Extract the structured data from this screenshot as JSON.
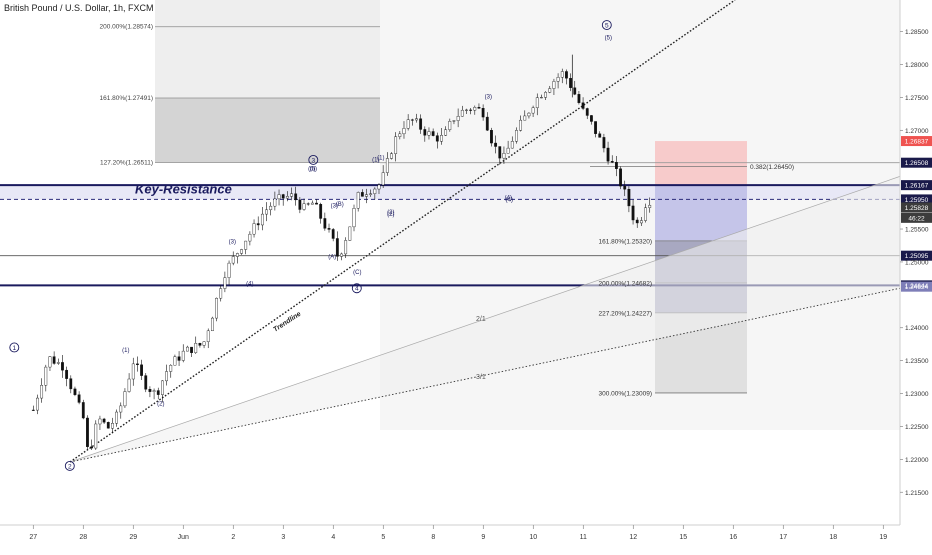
{
  "chart_data": {
    "type": "candlestick",
    "title": "British Pound / U.S. Dollar, 1h, FXCM",
    "x_tick_labels": [
      "27",
      "28",
      "29",
      "Jun",
      "2",
      "3",
      "4",
      "5",
      "8",
      "9",
      "10",
      "11",
      "12",
      "15",
      "16",
      "17",
      "18",
      "19"
    ],
    "ylim": [
      1.212,
      1.2895
    ],
    "y_ticks": [
      "1.28500",
      "1.28000",
      "1.27500",
      "1.27000",
      "1.25500",
      "1.25000",
      "1.24000",
      "1.23500",
      "1.23000",
      "1.22500",
      "1.22000",
      "1.21500"
    ],
    "price_badges": [
      {
        "value": 1.26837,
        "text": "1.26837",
        "color": "#ef5350"
      },
      {
        "value": 1.26508,
        "text": "1.26508",
        "color": "#1a1a4a"
      },
      {
        "value": 1.26167,
        "text": "1.26167",
        "color": "#1a1a4a"
      },
      {
        "value": 1.2595,
        "text": "1.25950",
        "color": "#1a1a4a"
      },
      {
        "value": 1.25828,
        "text": "1.25828",
        "color": "#3c3c3c"
      },
      {
        "value": 1.2567,
        "text": "46:22",
        "color": "#3c3c3c"
      },
      {
        "value": 1.25095,
        "text": "1.25095",
        "color": "#1a1a4a"
      },
      {
        "value": 1.24644,
        "text": "1.24644",
        "color": "#1a1a4a"
      },
      {
        "value": 1.24624,
        "text": "1.24624",
        "color": "#7e7eb8"
      }
    ],
    "key_resistance_label": "Key-Resistance",
    "key_resistance_zone": [
      1.2595,
      1.26167
    ],
    "support_line": 1.24644,
    "resistance_line_2": 1.25095,
    "fib_upper": [
      {
        "level": "200.00%",
        "value": 1.28574,
        "text": "200.00%(1.28574)"
      },
      {
        "level": "161.80%",
        "value": 1.27491,
        "text": "161.80%(1.27491)"
      },
      {
        "level": "127.20%",
        "value": 1.26511,
        "text": "127.20%(1.26511)"
      }
    ],
    "fib_lower": [
      {
        "value": 1.2645,
        "text": "0.382(1.26450)"
      },
      {
        "value": 1.2532,
        "text": "161.80%(1.25320)"
      },
      {
        "value": 1.24682,
        "text": "200.00%(1.24682)"
      },
      {
        "value": 1.24227,
        "text": "227.20%(1.24227)"
      },
      {
        "value": 1.23009,
        "text": "300.00%(1.23009)"
      }
    ],
    "trendline_label": "Trendline",
    "gann_labels": [
      "2/1",
      "3/1"
    ],
    "wave_labels": [
      {
        "text": "1",
        "circled": true
      },
      {
        "text": "2",
        "circled": true
      },
      {
        "text": "3",
        "circled": true
      },
      {
        "text": "4",
        "circled": true
      },
      {
        "text": "5",
        "circled": true
      },
      {
        "text": "(1)"
      },
      {
        "text": "(2)"
      },
      {
        "text": "(3)"
      },
      {
        "text": "(4)"
      },
      {
        "text": "(5)"
      },
      {
        "text": "(1)"
      },
      {
        "text": "(2)"
      },
      {
        "text": "(3)"
      },
      {
        "text": "(4)"
      },
      {
        "text": "(5)"
      },
      {
        "text": "(A)"
      },
      {
        "text": "(B)"
      },
      {
        "text": "(C)"
      },
      {
        "text": "(1)"
      },
      {
        "text": "(2)"
      },
      {
        "text": "(3)"
      },
      {
        "text": "(4)"
      },
      {
        "text": "(5)"
      }
    ],
    "series_points": [
      {
        "x": 0.0,
        "y": 1.2275
      },
      {
        "x": 0.3,
        "y": 1.2355
      },
      {
        "x": 0.6,
        "y": 1.2342
      },
      {
        "x": 0.8,
        "y": 1.2302
      },
      {
        "x": 1.0,
        "y": 1.2262
      },
      {
        "x": 1.1,
        "y": 1.2205
      },
      {
        "x": 1.3,
        "y": 1.2262
      },
      {
        "x": 1.5,
        "y": 1.2248
      },
      {
        "x": 1.7,
        "y": 1.2268
      },
      {
        "x": 2.0,
        "y": 1.2349
      },
      {
        "x": 2.2,
        "y": 1.2318
      },
      {
        "x": 2.45,
        "y": 1.2298
      },
      {
        "x": 2.7,
        "y": 1.234
      },
      {
        "x": 3.0,
        "y": 1.2362
      },
      {
        "x": 3.2,
        "y": 1.237
      },
      {
        "x": 3.4,
        "y": 1.2375
      },
      {
        "x": 3.6,
        "y": 1.2425
      },
      {
        "x": 3.8,
        "y": 1.248
      },
      {
        "x": 4.0,
        "y": 1.2505
      },
      {
        "x": 4.2,
        "y": 1.253
      },
      {
        "x": 4.4,
        "y": 1.255
      },
      {
        "x": 4.6,
        "y": 1.2575
      },
      {
        "x": 4.8,
        "y": 1.259
      },
      {
        "x": 5.0,
        "y": 1.2598
      },
      {
        "x": 5.2,
        "y": 1.26
      },
      {
        "x": 5.4,
        "y": 1.258
      },
      {
        "x": 5.6,
        "y": 1.259
      },
      {
        "x": 5.8,
        "y": 1.256
      },
      {
        "x": 6.0,
        "y": 1.253
      },
      {
        "x": 6.1,
        "y": 1.2505
      },
      {
        "x": 6.3,
        "y": 1.2548
      },
      {
        "x": 6.5,
        "y": 1.26
      },
      {
        "x": 6.7,
        "y": 1.261
      },
      {
        "x": 6.9,
        "y": 1.2615
      },
      {
        "x": 7.0,
        "y": 1.263
      },
      {
        "x": 7.2,
        "y": 1.268
      },
      {
        "x": 7.4,
        "y": 1.2708
      },
      {
        "x": 7.6,
        "y": 1.2715
      },
      {
        "x": 7.8,
        "y": 1.27
      },
      {
        "x": 8.0,
        "y": 1.269
      },
      {
        "x": 8.2,
        "y": 1.2688
      },
      {
        "x": 8.4,
        "y": 1.2718
      },
      {
        "x": 8.6,
        "y": 1.273
      },
      {
        "x": 8.8,
        "y": 1.2735
      },
      {
        "x": 9.0,
        "y": 1.2728
      },
      {
        "x": 9.2,
        "y": 1.2678
      },
      {
        "x": 9.4,
        "y": 1.2655
      },
      {
        "x": 9.6,
        "y": 1.269
      },
      {
        "x": 9.8,
        "y": 1.2715
      },
      {
        "x": 10.0,
        "y": 1.2742
      },
      {
        "x": 10.2,
        "y": 1.276
      },
      {
        "x": 10.4,
        "y": 1.2775
      },
      {
        "x": 10.6,
        "y": 1.2788
      },
      {
        "x": 10.75,
        "y": 1.2768
      },
      {
        "x": 11.0,
        "y": 1.2728
      },
      {
        "x": 11.2,
        "y": 1.2705
      },
      {
        "x": 11.4,
        "y": 1.2675
      },
      {
        "x": 11.6,
        "y": 1.2645
      },
      {
        "x": 11.8,
        "y": 1.261
      },
      {
        "x": 12.0,
        "y": 1.2568
      },
      {
        "x": 12.1,
        "y": 1.2555
      },
      {
        "x": 12.25,
        "y": 1.259
      },
      {
        "x": 12.4,
        "y": 1.2598
      }
    ]
  }
}
